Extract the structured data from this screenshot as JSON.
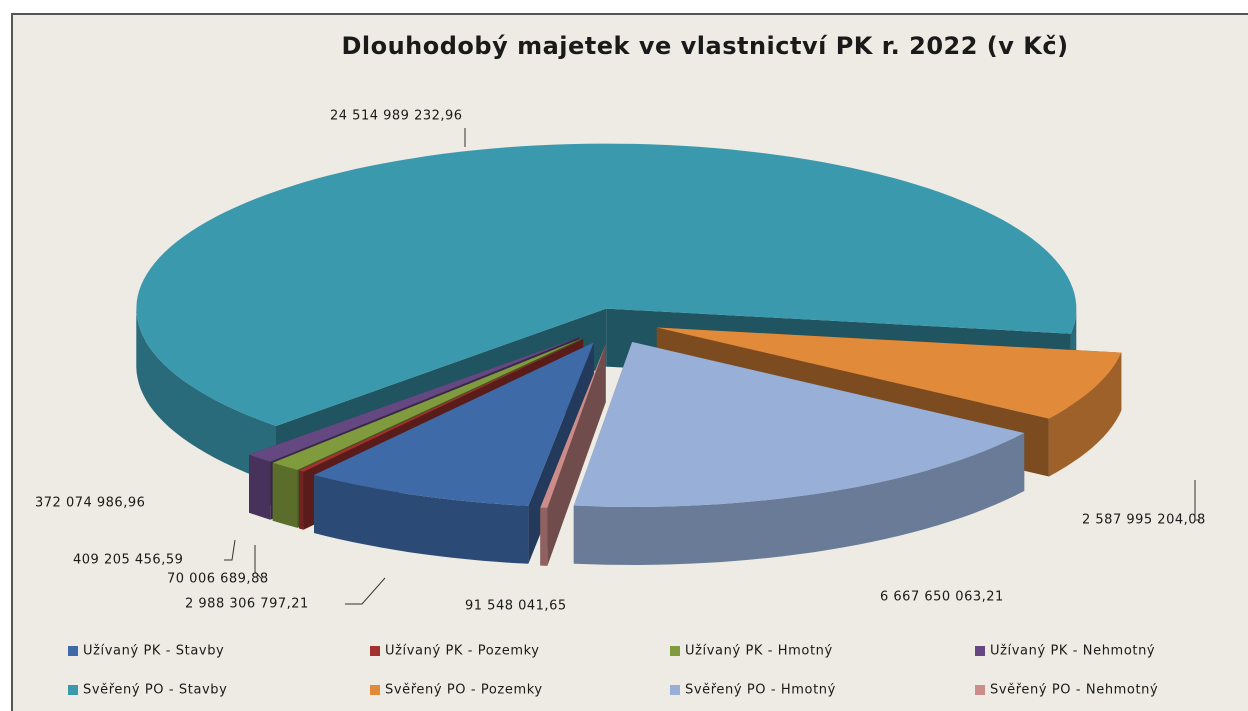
{
  "chart_data": {
    "type": "pie3d",
    "title": "Dlouhodobý majetek ve vlastnictví PK r. 2022 (v Kč)",
    "categories": [
      "Užívaný PK - Stavby",
      "Užívaný PK - Pozemky",
      "Užívaný PK - Hmotný",
      "Užívaný PK - Nehmotný",
      "Svěřený PO - Stavby",
      "Svěřený PO - Pozemky",
      "Svěřený PO - Hmotný",
      "Svěřený PO - Nehmotný"
    ],
    "values": [
      2988306797.21,
      70006689.88,
      409205456.59,
      372074986.96,
      24514989232.96,
      2587995204.08,
      6667650063.21,
      91548041.65
    ],
    "value_labels": [
      "2 988 306 797,21",
      "70 006 689,88",
      "409 205 456,59",
      "372 074 986,96",
      "24 514 989 232,96",
      "2 587 995 204,08",
      "6 667 650 063,21",
      "91 548 041,65"
    ],
    "colors": [
      "#3f6aa8",
      "#a3322f",
      "#809b3d",
      "#654882",
      "#3b99ae",
      "#e18a3a",
      "#98b0d8",
      "#cc8c8a"
    ]
  }
}
